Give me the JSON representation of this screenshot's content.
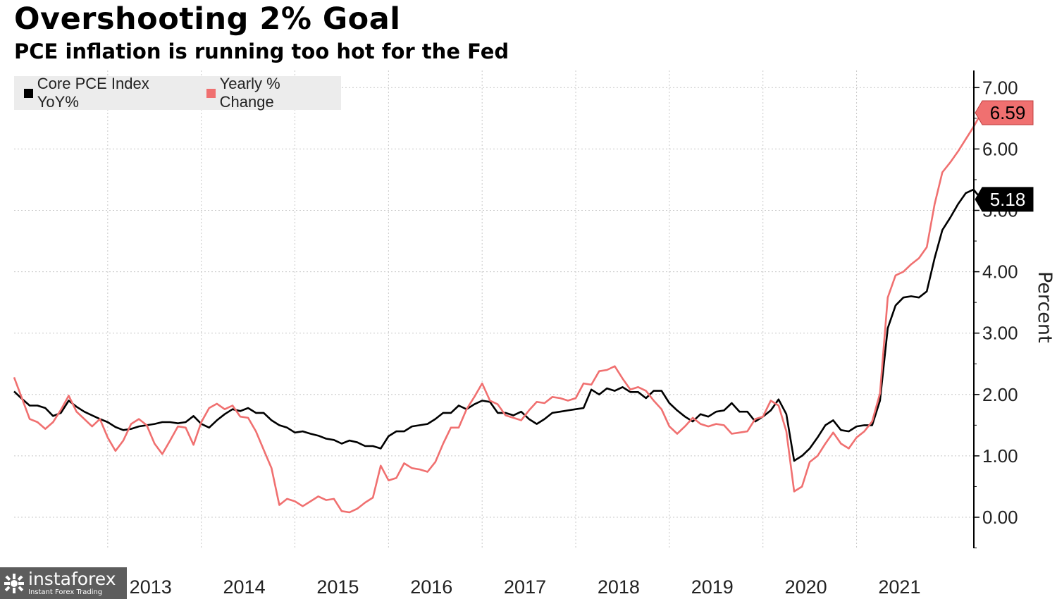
{
  "title": "Overshooting 2% Goal",
  "subtitle": "PCE inflation is running too hot for the Fed",
  "watermark": {
    "name": "instaforex",
    "tagline": "Instant Forex Trading",
    "icon": "instaforex-logo-icon"
  },
  "colors": {
    "core": "#000000",
    "yearly": "#f07070",
    "grid": "#c8c8c8",
    "legend_bg": "#ececec"
  },
  "chart_data": {
    "type": "line",
    "title": "Overshooting 2% Goal",
    "subtitle": "PCE inflation is running too hot for the Fed",
    "ylabel": "Percent",
    "xlabel": "",
    "ylim": [
      -0.5,
      7.2
    ],
    "yticks": [
      "0.00",
      "1.00",
      "2.00",
      "3.00",
      "4.00",
      "5.00",
      "6.00",
      "7.00"
    ],
    "xtick_labels": [
      "2013",
      "2014",
      "2015",
      "2016",
      "2017",
      "2018",
      "2019",
      "2020",
      "2021"
    ],
    "x_start": "2012-01",
    "x_end": "2021-09",
    "grid": true,
    "legend_position": "top-left",
    "series": [
      {
        "name": "Core PCE Index YoY%",
        "color": "#000000",
        "last_label": "5.18",
        "values": [
          2.05,
          1.93,
          1.82,
          1.82,
          1.78,
          1.65,
          1.7,
          1.9,
          1.8,
          1.72,
          1.66,
          1.6,
          1.55,
          1.47,
          1.42,
          1.44,
          1.48,
          1.5,
          1.52,
          1.55,
          1.55,
          1.53,
          1.55,
          1.65,
          1.52,
          1.46,
          1.58,
          1.68,
          1.76,
          1.73,
          1.78,
          1.7,
          1.7,
          1.58,
          1.5,
          1.46,
          1.38,
          1.4,
          1.36,
          1.33,
          1.28,
          1.26,
          1.2,
          1.25,
          1.22,
          1.16,
          1.16,
          1.12,
          1.32,
          1.4,
          1.4,
          1.48,
          1.5,
          1.52,
          1.6,
          1.7,
          1.7,
          1.82,
          1.76,
          1.84,
          1.9,
          1.88,
          1.7,
          1.7,
          1.66,
          1.72,
          1.6,
          1.52,
          1.6,
          1.7,
          1.72,
          1.74,
          1.76,
          1.78,
          2.08,
          2.0,
          2.1,
          2.06,
          2.12,
          2.04,
          2.04,
          1.94,
          2.06,
          2.06,
          1.86,
          1.74,
          1.64,
          1.56,
          1.68,
          1.64,
          1.72,
          1.74,
          1.86,
          1.72,
          1.72,
          1.56,
          1.64,
          1.74,
          1.92,
          1.68,
          0.92,
          1.0,
          1.12,
          1.3,
          1.5,
          1.58,
          1.42,
          1.4,
          1.48,
          1.5,
          1.5,
          1.9,
          3.08,
          3.45,
          3.58,
          3.6,
          3.58,
          3.68,
          4.22,
          4.68,
          4.88,
          5.1,
          5.28,
          5.34,
          5.18
        ]
      },
      {
        "name": "Yearly % Change",
        "color": "#f07070",
        "last_label": "6.59",
        "values": [
          2.28,
          1.94,
          1.6,
          1.55,
          1.44,
          1.55,
          1.75,
          1.98,
          1.72,
          1.6,
          1.48,
          1.6,
          1.3,
          1.08,
          1.25,
          1.52,
          1.6,
          1.5,
          1.2,
          1.03,
          1.25,
          1.48,
          1.46,
          1.18,
          1.55,
          1.78,
          1.85,
          1.76,
          1.82,
          1.64,
          1.62,
          1.4,
          1.1,
          0.8,
          0.2,
          0.3,
          0.26,
          0.18,
          0.26,
          0.34,
          0.28,
          0.3,
          0.1,
          0.08,
          0.14,
          0.24,
          0.32,
          0.84,
          0.6,
          0.64,
          0.88,
          0.8,
          0.78,
          0.74,
          0.9,
          1.2,
          1.46,
          1.46,
          1.76,
          1.96,
          2.18,
          1.9,
          1.84,
          1.66,
          1.62,
          1.58,
          1.74,
          1.88,
          1.86,
          1.96,
          1.94,
          1.9,
          1.94,
          2.18,
          2.16,
          2.38,
          2.4,
          2.46,
          2.26,
          2.08,
          2.12,
          2.06,
          1.9,
          1.76,
          1.48,
          1.36,
          1.48,
          1.62,
          1.52,
          1.48,
          1.52,
          1.5,
          1.36,
          1.38,
          1.4,
          1.6,
          1.64,
          1.9,
          1.82,
          1.4,
          0.42,
          0.5,
          0.9,
          1.0,
          1.2,
          1.38,
          1.2,
          1.12,
          1.3,
          1.4,
          1.56,
          2.02,
          3.58,
          3.94,
          4.0,
          4.12,
          4.22,
          4.4,
          5.1,
          5.62,
          5.78,
          5.96,
          6.16,
          6.36,
          6.59
        ]
      }
    ]
  }
}
